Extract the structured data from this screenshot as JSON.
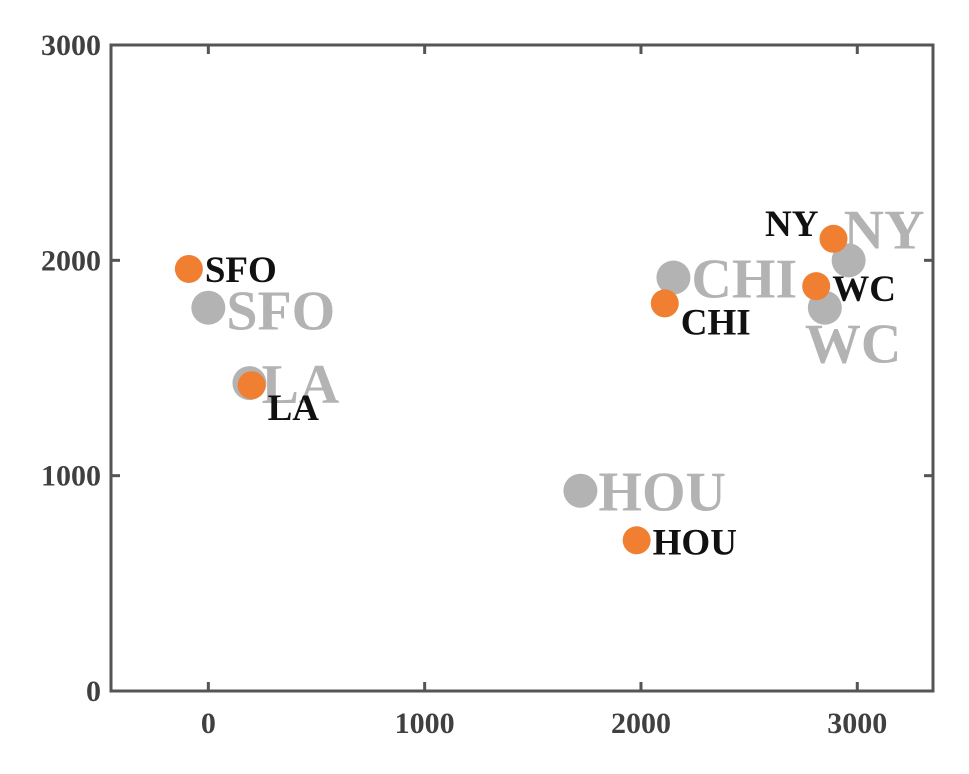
{
  "chart_data": {
    "type": "scatter",
    "title": "",
    "xlabel": "",
    "ylabel": "",
    "xlim": [
      -450,
      3350
    ],
    "ylim": [
      0,
      3000
    ],
    "xticks": [
      0,
      1000,
      2000,
      3000
    ],
    "yticks": [
      0,
      1000,
      2000,
      3000
    ],
    "xtick_labels": [
      "0",
      "1000",
      "2000",
      "3000"
    ],
    "ytick_labels": [
      "0",
      "1000",
      "2000",
      "3000"
    ],
    "grid": false,
    "legend": "none",
    "series": [
      {
        "color": "#b3b3b3",
        "points": [
          {
            "label": "SFO",
            "x": 0,
            "y": 1780
          },
          {
            "label": "LA",
            "x": 190,
            "y": 1430
          },
          {
            "label": "CHI",
            "x": 2150,
            "y": 1920
          },
          {
            "label": "NY",
            "x": 2960,
            "y": 2000
          },
          {
            "label": "WC",
            "x": 2850,
            "y": 1780
          },
          {
            "label": "HOU",
            "x": 1720,
            "y": 930
          }
        ]
      },
      {
        "color": "#f07f32",
        "points": [
          {
            "label": "SFO",
            "x": -90,
            "y": 1960
          },
          {
            "label": "LA",
            "x": 200,
            "y": 1420
          },
          {
            "label": "CHI",
            "x": 2110,
            "y": 1800
          },
          {
            "label": "NY",
            "x": 2890,
            "y": 2100
          },
          {
            "label": "WC",
            "x": 2810,
            "y": 1880
          },
          {
            "label": "HOU",
            "x": 1980,
            "y": 700
          }
        ]
      }
    ]
  }
}
